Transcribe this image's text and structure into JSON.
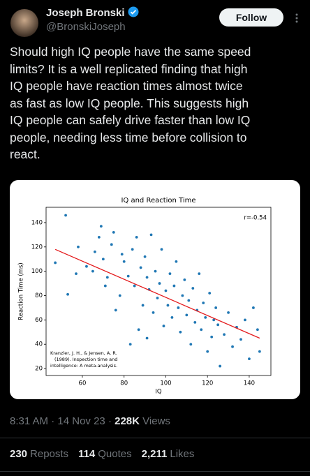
{
  "author": {
    "name": "Joseph Bronski",
    "handle": "@BronskiJoseph"
  },
  "follow_button": "Follow",
  "text_lines": [
    "Should high IQ people have the same speed",
    "limits? It is a well replicated finding that high",
    "IQ people have reaction times almost twice",
    "as fast as low IQ people. This suggests high",
    "IQ people can safely drive faster than low IQ",
    "people, needing less time before collision to",
    "react."
  ],
  "chart_data": {
    "type": "scatter",
    "title": "IQ and Reaction Time",
    "x_label": "IQ",
    "y_label": "Reaction Time (ms)",
    "annotation": "r=-0.54",
    "citation": [
      "Kranzler, J. H., & Jensen, A. R.",
      "(1989). Inspection time and",
      "intelligence: A meta-analysis."
    ],
    "xlim": [
      42.6,
      150.4
    ],
    "ylim": [
      14.3,
      152.6
    ],
    "xticks": [
      60,
      80,
      100,
      120,
      140
    ],
    "yticks": [
      20,
      40,
      60,
      80,
      100,
      120,
      140
    ],
    "series": [
      {
        "color": "#1f77b4",
        "x": [
          52,
          47,
          53,
          58,
          57,
          62,
          66,
          68,
          69,
          70,
          72,
          74,
          75,
          78,
          79,
          80,
          82,
          84,
          85,
          86,
          88,
          89,
          90,
          91,
          92,
          93,
          94,
          95,
          96,
          97,
          98,
          99,
          100,
          101,
          102,
          103,
          104,
          105,
          106,
          107,
          108,
          109,
          110,
          111,
          112,
          113,
          114,
          115,
          116,
          117,
          118,
          119,
          120,
          121,
          122,
          123,
          124,
          125,
          126,
          128,
          130,
          132,
          134,
          136,
          138,
          140,
          142,
          144,
          145,
          83,
          87,
          91,
          76,
          71,
          65
        ],
        "y": [
          146,
          107,
          81,
          120,
          98,
          104,
          116,
          128,
          137,
          110,
          95,
          122,
          132,
          80,
          114,
          108,
          96,
          118,
          88,
          128,
          103,
          72,
          112,
          95,
          85,
          130,
          66,
          100,
          78,
          90,
          118,
          55,
          84,
          72,
          98,
          62,
          88,
          108,
          70,
          50,
          80,
          93,
          64,
          76,
          40,
          86,
          58,
          68,
          98,
          52,
          74,
          62,
          34,
          82,
          46,
          60,
          70,
          56,
          22,
          48,
          66,
          38,
          54,
          44,
          60,
          28,
          70,
          52,
          34,
          40,
          52,
          45,
          68,
          88,
          100
        ]
      }
    ],
    "fit_line": {
      "color": "#e41a1c",
      "x": [
        47,
        145
      ],
      "y": [
        118,
        45
      ]
    }
  },
  "footer": {
    "time": "8:31 AM",
    "separator": "·",
    "date": "14 Nov 23",
    "views": "228K",
    "views_label": "Views"
  },
  "metrics": [
    {
      "value": "230",
      "label": "Reposts"
    },
    {
      "value": "114",
      "label": "Quotes"
    },
    {
      "value": "2,211",
      "label": "Likes"
    }
  ]
}
